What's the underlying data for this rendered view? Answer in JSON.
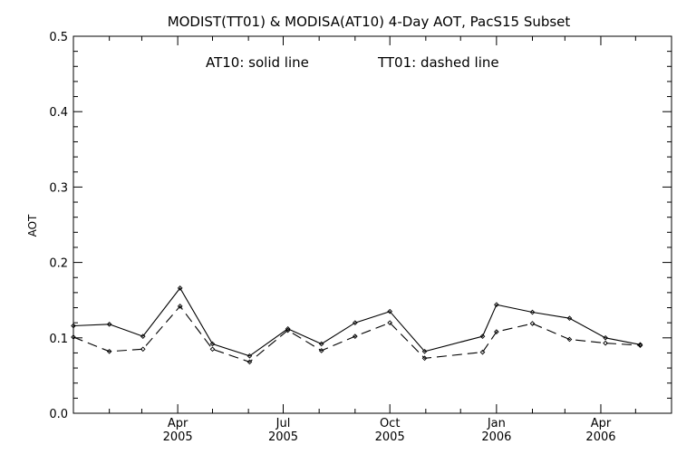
{
  "chart_data": {
    "type": "line",
    "title": "MODIST(TT01) & MODISA(AT10) 4-Day AOT, PacS15 Subset",
    "ylabel": "AOT",
    "xlabel": "",
    "annotation": {
      "solid": "AT10: solid line",
      "dashed": "TT01: dashed line"
    },
    "ylim": [
      0.0,
      0.5
    ],
    "y_ticks": [
      "0.0",
      "0.1",
      "0.2",
      "0.3",
      "0.4",
      "0.5"
    ],
    "xlim": [
      "2005-01-01",
      "2006-06-01"
    ],
    "x_ticks": [
      {
        "date": "2005-04-01",
        "month": "Apr",
        "year": "2005"
      },
      {
        "date": "2005-07-01",
        "month": "Jul",
        "year": "2005"
      },
      {
        "date": "2005-10-01",
        "month": "Oct",
        "year": "2005"
      },
      {
        "date": "2006-01-01",
        "month": "Jan",
        "year": "2006"
      },
      {
        "date": "2006-04-01",
        "month": "Apr",
        "year": "2006"
      }
    ],
    "grid": false,
    "legend": "none",
    "series": [
      {
        "name": "AT10",
        "line_style": "solid",
        "color": "#000000",
        "x": [
          "2005-01-01",
          "2005-02-01",
          "2005-03-02",
          "2005-04-03",
          "2005-05-01",
          "2005-06-02",
          "2005-07-05",
          "2005-08-03",
          "2005-09-01",
          "2005-10-01",
          "2005-10-31",
          "2005-12-20",
          "2006-01-01",
          "2006-02-01",
          "2006-03-05",
          "2006-04-05",
          "2006-05-05"
        ],
        "values": [
          0.116,
          0.118,
          0.102,
          0.166,
          0.092,
          0.076,
          0.112,
          0.092,
          0.12,
          0.135,
          0.082,
          0.102,
          0.144,
          0.134,
          0.126,
          0.1,
          0.091
        ]
      },
      {
        "name": "TT01",
        "line_style": "dashed",
        "color": "#000000",
        "x": [
          "2005-01-01",
          "2005-02-01",
          "2005-03-02",
          "2005-04-03",
          "2005-05-01",
          "2005-06-02",
          "2005-07-05",
          "2005-08-03",
          "2005-09-01",
          "2005-10-01",
          "2005-10-31",
          "2005-12-20",
          "2006-01-01",
          "2006-02-01",
          "2006-03-05",
          "2006-04-05",
          "2006-05-05"
        ],
        "values": [
          0.101,
          0.082,
          0.085,
          0.142,
          0.085,
          0.068,
          0.11,
          0.083,
          0.102,
          0.12,
          0.073,
          0.081,
          0.108,
          0.119,
          0.098,
          0.093,
          0.09
        ]
      }
    ]
  }
}
